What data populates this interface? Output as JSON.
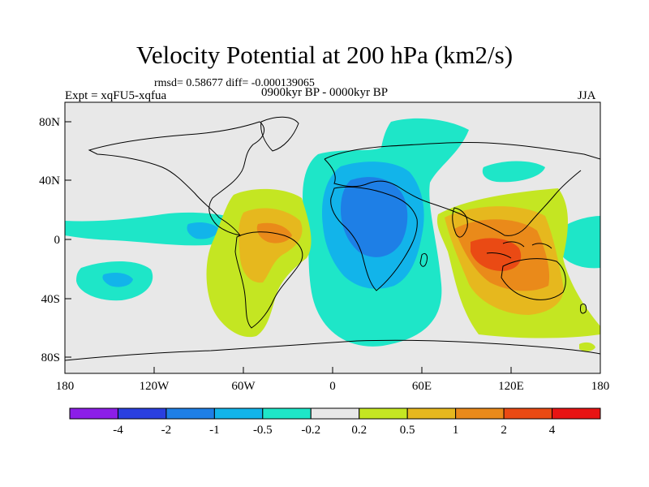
{
  "title": "Velocity Potential at 200 hPa (km2/s)",
  "stats": "rmsd= 0.58677 diff= -0.000139065",
  "experiment": "Expt = xqFU5-xqfua",
  "period": "0900kyr BP - 0000kyr BP",
  "season": "JJA",
  "axes": {
    "x_ticks": [
      "180",
      "120W",
      "60W",
      "0",
      "60E",
      "120E",
      "180"
    ],
    "y_ticks": [
      "80N",
      "40N",
      "0",
      "40S",
      "80S"
    ]
  },
  "colorbar": {
    "labels": [
      "-4",
      "-2",
      "-1",
      "-0.5",
      "-0.2",
      "0.2",
      "0.5",
      "1",
      "2",
      "4"
    ],
    "colors": [
      "#8c1ee8",
      "#2a3fe0",
      "#1e7fe6",
      "#12b4ea",
      "#1ee6c8",
      "#e8e8e8",
      "#c4e622",
      "#e6b81e",
      "#ea8a1a",
      "#ea4a14",
      "#e81414"
    ]
  },
  "colors": {
    "background": "#e8e8e8",
    "coast": "#000000"
  }
}
